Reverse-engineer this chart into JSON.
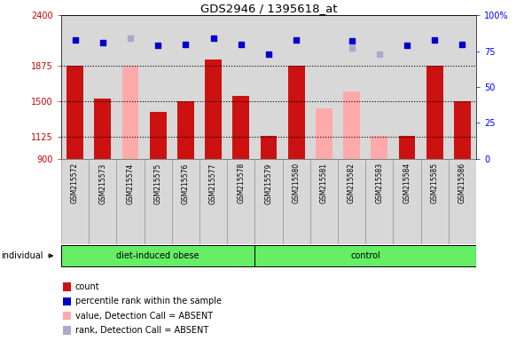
{
  "title": "GDS2946 / 1395618_at",
  "samples": [
    "GSM215572",
    "GSM215573",
    "GSM215574",
    "GSM215575",
    "GSM215576",
    "GSM215577",
    "GSM215578",
    "GSM215579",
    "GSM215580",
    "GSM215581",
    "GSM215582",
    "GSM215583",
    "GSM215584",
    "GSM215585",
    "GSM215586"
  ],
  "bar_values": [
    1870,
    1530,
    null,
    1390,
    1500,
    1940,
    1555,
    1140,
    1870,
    null,
    null,
    null,
    1140,
    1870,
    1500
  ],
  "absent_bar_values": [
    null,
    null,
    1870,
    null,
    null,
    null,
    null,
    null,
    null,
    1430,
    1600,
    1140,
    null,
    null,
    null
  ],
  "percentile_values": [
    83,
    81,
    null,
    79,
    80,
    84,
    80,
    73,
    83,
    null,
    82,
    null,
    79,
    83,
    80
  ],
  "absent_rank_values": [
    null,
    null,
    84,
    null,
    null,
    null,
    null,
    null,
    null,
    null,
    77,
    73,
    null,
    null,
    null
  ],
  "ylim_left": [
    900,
    2400
  ],
  "ylim_right": [
    0,
    100
  ],
  "yticks_left": [
    900,
    1125,
    1500,
    1875,
    2400
  ],
  "yticks_right": [
    0,
    25,
    50,
    75,
    100
  ],
  "hlines": [
    1875,
    1500,
    1125
  ],
  "bar_color": "#cc1111",
  "absent_bar_color": "#ffaaaa",
  "dot_color": "#0000cc",
  "absent_dot_color": "#aaaacc",
  "bg_color": "#d8d8d8",
  "group_color": "#66ee66",
  "group1_label": "diet-induced obese",
  "group1_indices": [
    0,
    1,
    2,
    3,
    4,
    5,
    6
  ],
  "group2_label": "control",
  "group2_indices": [
    7,
    8,
    9,
    10,
    11,
    12,
    13,
    14
  ],
  "individual_label": "individual",
  "legend_items": [
    {
      "label": "count",
      "color": "#cc1111"
    },
    {
      "label": "percentile rank within the sample",
      "color": "#0000cc"
    },
    {
      "label": "value, Detection Call = ABSENT",
      "color": "#ffaaaa"
    },
    {
      "label": "rank, Detection Call = ABSENT",
      "color": "#aaaacc"
    }
  ]
}
